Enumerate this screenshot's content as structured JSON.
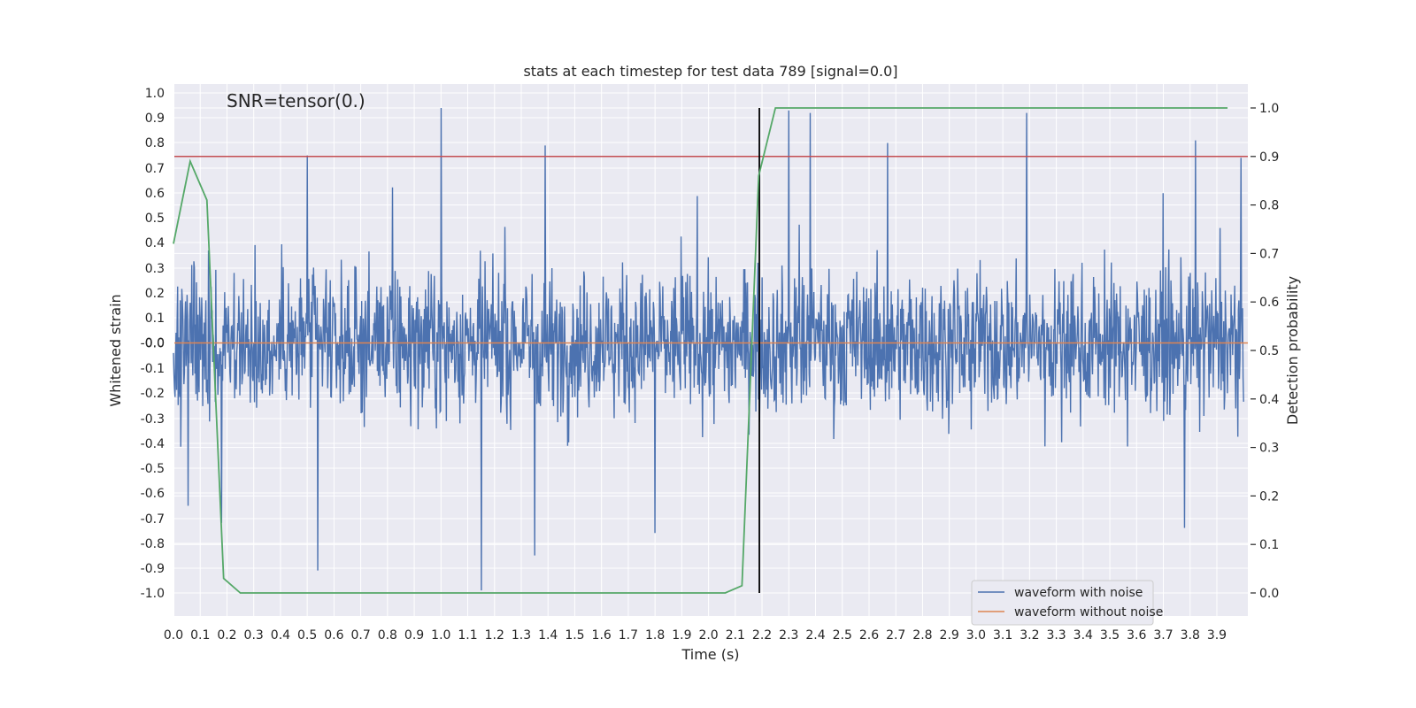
{
  "chart_data": {
    "type": "line",
    "title": "stats at each timestep for test data 789 [signal=0.0]",
    "xlabel": "Time (s)",
    "ylabel": "Whitened strain",
    "y2label": "Detection probability",
    "annotation": "SNR=tensor(0.)",
    "xlim": [
      0.0,
      4.0
    ],
    "ylim": [
      -1.1,
      1.05
    ],
    "y2lim": [
      -0.05,
      1.03
    ],
    "xticks": [
      "0.0",
      "0.1",
      "0.2",
      "0.3",
      "0.4",
      "0.5",
      "0.6",
      "0.7",
      "0.8",
      "0.9",
      "1.0",
      "1.1",
      "1.2",
      "1.3",
      "1.4",
      "1.5",
      "1.6",
      "1.7",
      "1.8",
      "1.9",
      "2.0",
      "2.1",
      "2.2",
      "2.3",
      "2.4",
      "2.5",
      "2.6",
      "2.7",
      "2.8",
      "2.9",
      "3.0",
      "3.1",
      "3.2",
      "3.3",
      "3.4",
      "3.5",
      "3.6",
      "3.7",
      "3.8",
      "3.9"
    ],
    "yticks": [
      "1.0",
      "0.9",
      "0.8",
      "0.7",
      "0.6",
      "0.5",
      "0.4",
      "0.3",
      "0.2",
      "0.1",
      "0.0",
      "-0.0",
      "-0.1",
      "-0.2",
      "-0.3",
      "-0.4",
      "-0.5",
      "-0.6",
      "-0.7",
      "-0.8",
      "-0.9",
      "-1.0"
    ],
    "y2ticks": [
      "0.0",
      "0.1",
      "0.2",
      "0.3",
      "0.4",
      "0.5",
      "0.6",
      "0.7",
      "0.8",
      "0.9",
      "1.0"
    ],
    "grid": true,
    "legend_position": "lower-right",
    "series": [
      {
        "name": "waveform with noise",
        "color": "#4c72b0",
        "style": "noisy",
        "t_start": 0.0,
        "t_end": 4.0,
        "samples": 2048,
        "envelope": [
          -0.45,
          0.45
        ],
        "peaks": [
          {
            "t": 1.0,
            "v": 0.94
          },
          {
            "t": 2.3,
            "v": 0.93
          },
          {
            "t": 3.19,
            "v": 0.92
          },
          {
            "t": 2.38,
            "v": 0.92
          },
          {
            "t": 3.82,
            "v": 0.81
          },
          {
            "t": 1.39,
            "v": 0.79
          },
          {
            "t": 2.67,
            "v": 0.8
          },
          {
            "t": 0.5,
            "v": 0.75
          },
          {
            "t": 1.15,
            "v": -0.99
          },
          {
            "t": 0.54,
            "v": -0.91
          },
          {
            "t": 1.35,
            "v": -0.85
          },
          {
            "t": 3.78,
            "v": -0.74
          },
          {
            "t": 1.8,
            "v": -0.76
          },
          {
            "t": 0.18,
            "v": -0.72
          }
        ]
      },
      {
        "name": "waveform without noise",
        "color": "#dd8452",
        "style": "line",
        "x": [
          0.0,
          4.0
        ],
        "y": [
          0.0,
          0.0
        ]
      }
    ],
    "threshold": {
      "axis": "y2",
      "value": 0.9,
      "color": "#c44e52"
    },
    "detection_time": {
      "t": 2.19,
      "color": "#000000"
    },
    "probability": {
      "color": "#55a868",
      "axis": "y2",
      "x": [
        0.0,
        0.0625,
        0.125,
        0.1875,
        0.25,
        2.0625,
        2.125,
        2.1875,
        2.25,
        3.94
      ],
      "y": [
        0.72,
        0.89,
        0.81,
        0.03,
        0.0,
        0.0,
        0.015,
        0.86,
        1.0,
        1.0
      ]
    }
  }
}
